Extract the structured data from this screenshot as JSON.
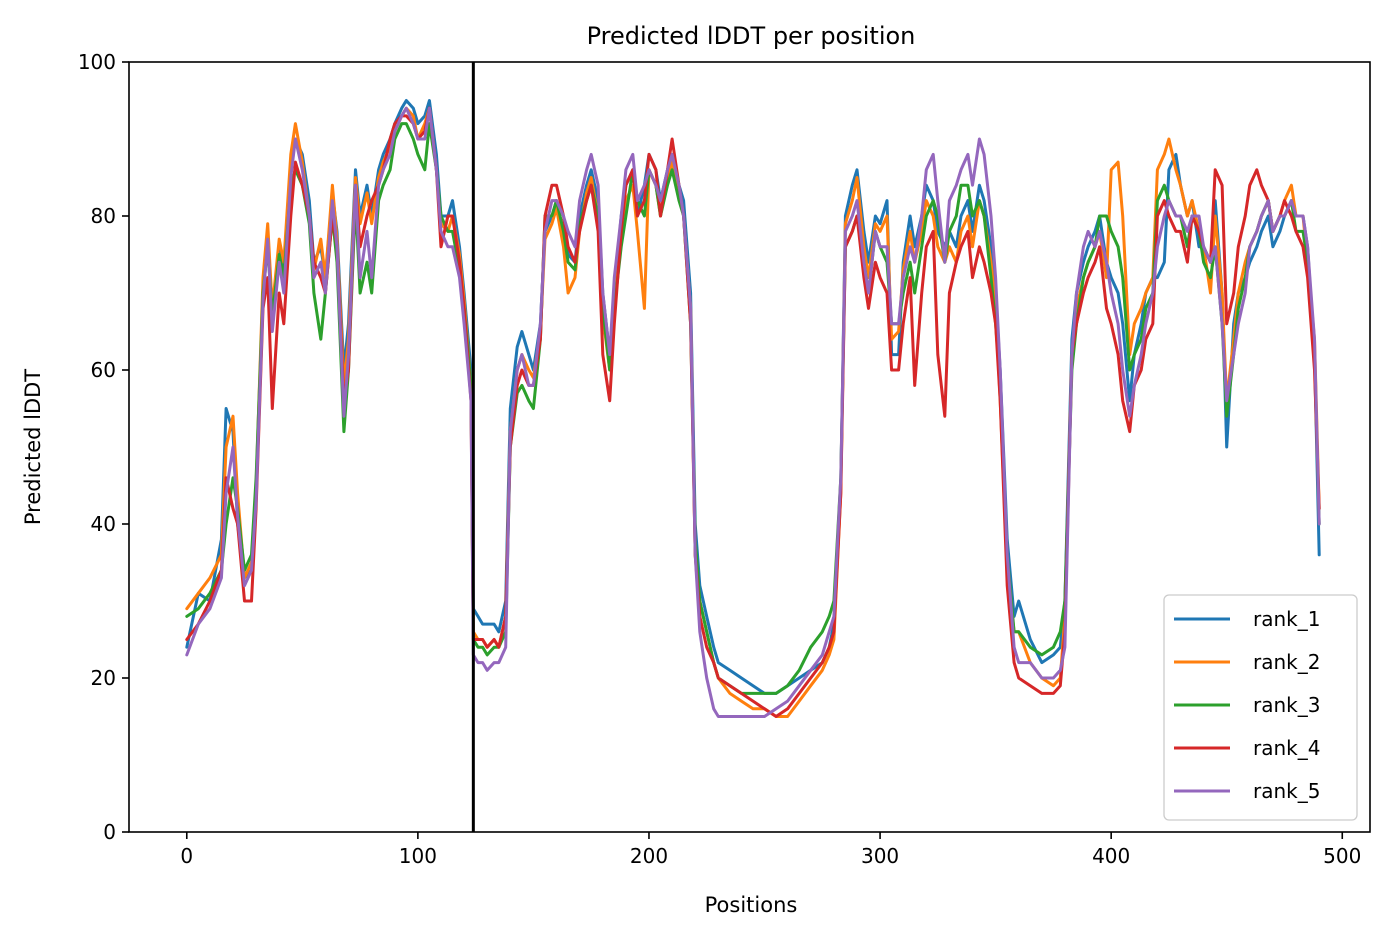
{
  "chart_data": {
    "type": "line",
    "title": "Predicted lDDT per position",
    "xlabel": "Positions",
    "ylabel": "Predicted lDDT",
    "xlim": [
      -25,
      512
    ],
    "ylim": [
      0,
      100
    ],
    "xticks": [
      0,
      100,
      200,
      300,
      400,
      500
    ],
    "yticks": [
      0,
      20,
      40,
      60,
      80,
      100
    ],
    "grid": false,
    "legend_position": "lower right",
    "vline_x": 124,
    "vline_color": "#000000",
    "x": [
      0,
      5,
      10,
      15,
      17,
      20,
      22,
      25,
      28,
      30,
      33,
      35,
      37,
      40,
      42,
      45,
      47,
      50,
      53,
      55,
      58,
      60,
      63,
      65,
      68,
      70,
      73,
      75,
      78,
      80,
      83,
      85,
      88,
      90,
      93,
      95,
      98,
      100,
      103,
      105,
      108,
      110,
      113,
      115,
      118,
      120,
      123,
      124,
      126,
      128,
      130,
      133,
      135,
      138,
      140,
      143,
      145,
      148,
      150,
      153,
      155,
      158,
      160,
      163,
      165,
      168,
      170,
      173,
      175,
      178,
      180,
      183,
      185,
      188,
      190,
      193,
      195,
      198,
      200,
      203,
      205,
      208,
      210,
      213,
      215,
      218,
      220,
      222,
      225,
      228,
      230,
      235,
      240,
      245,
      250,
      255,
      260,
      265,
      270,
      275,
      278,
      280,
      283,
      285,
      288,
      290,
      293,
      295,
      298,
      300,
      303,
      305,
      308,
      310,
      313,
      315,
      318,
      320,
      323,
      325,
      328,
      330,
      333,
      335,
      338,
      340,
      343,
      345,
      348,
      350,
      352,
      355,
      358,
      360,
      365,
      370,
      375,
      378,
      380,
      383,
      385,
      388,
      390,
      393,
      395,
      398,
      400,
      403,
      405,
      408,
      410,
      413,
      415,
      418,
      420,
      423,
      425,
      428,
      430,
      433,
      435,
      438,
      440,
      443,
      445,
      448,
      450,
      453,
      455,
      458,
      460,
      463,
      465,
      468,
      470,
      473,
      475,
      478,
      480,
      483,
      485,
      488,
      490
    ],
    "series": [
      {
        "name": "rank_1",
        "color": "#1f77b4",
        "values": [
          24,
          31,
          30,
          38,
          55,
          52,
          40,
          33,
          34,
          44,
          70,
          78,
          66,
          76,
          72,
          86,
          90,
          88,
          82,
          74,
          76,
          72,
          83,
          78,
          60,
          66,
          86,
          80,
          84,
          80,
          86,
          88,
          90,
          92,
          94,
          95,
          94,
          92,
          93,
          95,
          88,
          80,
          80,
          82,
          76,
          70,
          60,
          29,
          28,
          27,
          27,
          27,
          26,
          30,
          55,
          63,
          65,
          62,
          60,
          66,
          78,
          80,
          82,
          78,
          75,
          74,
          80,
          84,
          86,
          82,
          70,
          62,
          70,
          80,
          84,
          86,
          80,
          84,
          88,
          86,
          82,
          86,
          88,
          84,
          82,
          70,
          40,
          32,
          28,
          24,
          22,
          21,
          20,
          19,
          18,
          18,
          19,
          20,
          21,
          22,
          24,
          27,
          45,
          80,
          84,
          86,
          78,
          74,
          80,
          79,
          82,
          62,
          62,
          74,
          80,
          76,
          80,
          84,
          82,
          78,
          76,
          78,
          76,
          80,
          82,
          78,
          84,
          82,
          76,
          70,
          60,
          38,
          28,
          30,
          25,
          22,
          23,
          24,
          30,
          64,
          70,
          74,
          76,
          78,
          80,
          74,
          72,
          70,
          66,
          56,
          62,
          66,
          70,
          72,
          72,
          74,
          86,
          88,
          84,
          80,
          82,
          76,
          76,
          74,
          82,
          70,
          50,
          66,
          70,
          72,
          74,
          76,
          78,
          80,
          76,
          78,
          80,
          82,
          80,
          80,
          76,
          62,
          36
        ]
      },
      {
        "name": "rank_2",
        "color": "#ff7f0e",
        "values": [
          29,
          31,
          33,
          36,
          50,
          54,
          44,
          33,
          35,
          45,
          72,
          79,
          68,
          77,
          74,
          88,
          92,
          87,
          80,
          73,
          77,
          72,
          84,
          77,
          58,
          64,
          85,
          79,
          83,
          79,
          85,
          87,
          89,
          91,
          93,
          94,
          93,
          90,
          92,
          94,
          86,
          79,
          78,
          80,
          75,
          69,
          58,
          26,
          25,
          25,
          24,
          25,
          24,
          28,
          52,
          60,
          62,
          60,
          59,
          65,
          77,
          79,
          81,
          76,
          70,
          72,
          78,
          83,
          85,
          80,
          67,
          60,
          68,
          78,
          82,
          84,
          78,
          68,
          86,
          84,
          80,
          85,
          87,
          83,
          80,
          68,
          36,
          30,
          26,
          22,
          20,
          18,
          17,
          16,
          16,
          15,
          15,
          17,
          19,
          21,
          23,
          25,
          44,
          79,
          82,
          85,
          76,
          72,
          79,
          78,
          80,
          64,
          65,
          73,
          78,
          74,
          78,
          82,
          80,
          76,
          74,
          76,
          74,
          78,
          80,
          76,
          82,
          80,
          74,
          68,
          56,
          34,
          26,
          26,
          22,
          20,
          19,
          20,
          28,
          62,
          68,
          72,
          74,
          76,
          78,
          72,
          86,
          87,
          80,
          62,
          66,
          68,
          70,
          72,
          86,
          88,
          90,
          86,
          84,
          80,
          82,
          78,
          76,
          70,
          80,
          70,
          56,
          64,
          70,
          74,
          76,
          78,
          80,
          82,
          78,
          80,
          82,
          84,
          80,
          80,
          74,
          64,
          42
        ]
      },
      {
        "name": "rank_3",
        "color": "#2ca02c",
        "values": [
          28,
          29,
          31,
          34,
          40,
          46,
          42,
          34,
          36,
          46,
          70,
          76,
          67,
          75,
          72,
          84,
          86,
          84,
          79,
          70,
          64,
          70,
          80,
          74,
          52,
          60,
          82,
          70,
          74,
          70,
          82,
          84,
          86,
          90,
          92,
          92,
          90,
          88,
          86,
          92,
          86,
          80,
          78,
          78,
          73,
          68,
          58,
          25,
          24,
          24,
          23,
          24,
          24,
          26,
          50,
          57,
          58,
          56,
          55,
          64,
          80,
          80,
          82,
          78,
          74,
          73,
          79,
          82,
          84,
          80,
          68,
          60,
          68,
          76,
          80,
          86,
          82,
          80,
          86,
          84,
          80,
          84,
          86,
          82,
          80,
          66,
          38,
          30,
          26,
          22,
          20,
          19,
          18,
          18,
          18,
          18,
          19,
          21,
          24,
          26,
          28,
          30,
          46,
          76,
          78,
          80,
          74,
          70,
          78,
          76,
          74,
          66,
          66,
          70,
          74,
          70,
          76,
          80,
          82,
          80,
          74,
          78,
          80,
          84,
          84,
          80,
          82,
          80,
          72,
          66,
          58,
          36,
          26,
          26,
          24,
          23,
          24,
          26,
          30,
          60,
          66,
          72,
          74,
          76,
          80,
          80,
          78,
          76,
          72,
          60,
          62,
          64,
          68,
          70,
          82,
          84,
          82,
          80,
          80,
          76,
          80,
          78,
          74,
          72,
          76,
          66,
          54,
          62,
          68,
          72,
          76,
          78,
          80,
          82,
          78,
          80,
          80,
          82,
          78,
          78,
          74,
          62,
          40
        ]
      },
      {
        "name": "rank_4",
        "color": "#d62728",
        "values": [
          25,
          27,
          30,
          34,
          46,
          42,
          40,
          30,
          30,
          42,
          68,
          72,
          55,
          70,
          66,
          80,
          87,
          84,
          80,
          74,
          72,
          70,
          80,
          76,
          56,
          60,
          84,
          76,
          80,
          82,
          84,
          86,
          90,
          92,
          93,
          93,
          92,
          90,
          91,
          94,
          86,
          76,
          80,
          80,
          74,
          68,
          56,
          25,
          25,
          25,
          24,
          25,
          24,
          28,
          50,
          58,
          60,
          58,
          58,
          64,
          80,
          84,
          84,
          80,
          76,
          74,
          78,
          82,
          84,
          78,
          62,
          56,
          66,
          78,
          84,
          86,
          80,
          82,
          88,
          86,
          80,
          86,
          90,
          84,
          80,
          66,
          36,
          28,
          24,
          22,
          20,
          19,
          18,
          17,
          16,
          15,
          16,
          18,
          20,
          22,
          24,
          26,
          44,
          76,
          78,
          80,
          72,
          68,
          74,
          72,
          70,
          60,
          60,
          66,
          72,
          58,
          70,
          76,
          78,
          62,
          54,
          70,
          74,
          76,
          78,
          72,
          76,
          74,
          70,
          66,
          56,
          32,
          22,
          20,
          19,
          18,
          18,
          19,
          26,
          62,
          66,
          70,
          72,
          74,
          76,
          68,
          66,
          62,
          56,
          52,
          58,
          60,
          64,
          66,
          80,
          82,
          80,
          78,
          78,
          74,
          80,
          78,
          76,
          74,
          86,
          84,
          66,
          70,
          76,
          80,
          84,
          86,
          84,
          82,
          78,
          80,
          82,
          80,
          78,
          76,
          72,
          60,
          42
        ]
      },
      {
        "name": "rank_5",
        "color": "#9467bd",
        "values": [
          23,
          27,
          29,
          33,
          44,
          50,
          41,
          32,
          34,
          43,
          69,
          77,
          65,
          74,
          70,
          85,
          90,
          86,
          80,
          72,
          74,
          70,
          82,
          76,
          54,
          62,
          84,
          72,
          78,
          72,
          84,
          86,
          88,
          91,
          93,
          94,
          92,
          90,
          90,
          94,
          86,
          78,
          76,
          76,
          72,
          66,
          56,
          23,
          22,
          22,
          21,
          22,
          22,
          24,
          52,
          60,
          62,
          58,
          58,
          66,
          78,
          82,
          82,
          80,
          78,
          76,
          82,
          86,
          88,
          84,
          70,
          62,
          72,
          80,
          86,
          88,
          82,
          84,
          86,
          84,
          82,
          86,
          88,
          84,
          80,
          68,
          36,
          26,
          20,
          16,
          15,
          15,
          15,
          15,
          15,
          16,
          17,
          19,
          21,
          23,
          26,
          28,
          46,
          78,
          80,
          82,
          74,
          70,
          78,
          76,
          76,
          66,
          66,
          72,
          76,
          74,
          80,
          86,
          88,
          82,
          74,
          82,
          84,
          86,
          88,
          84,
          90,
          88,
          80,
          72,
          60,
          36,
          24,
          22,
          22,
          20,
          20,
          21,
          24,
          62,
          70,
          76,
          78,
          76,
          78,
          74,
          70,
          66,
          60,
          54,
          58,
          62,
          66,
          70,
          76,
          80,
          82,
          80,
          80,
          78,
          80,
          80,
          76,
          74,
          76,
          66,
          56,
          62,
          66,
          70,
          76,
          78,
          80,
          82,
          78,
          80,
          80,
          82,
          80,
          80,
          76,
          64,
          40
        ]
      }
    ]
  }
}
